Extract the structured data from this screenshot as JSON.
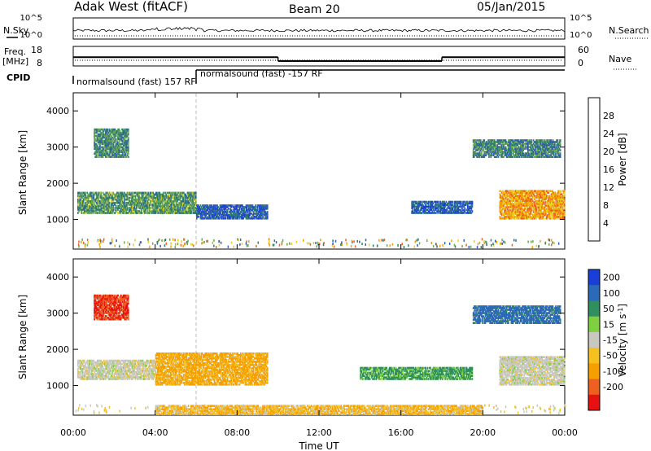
{
  "header": {
    "station": "Adak West (fitACF)",
    "beam": "Beam 20",
    "date": "05/Jan/2015"
  },
  "strip_labels": {
    "nsky": "N.Sky",
    "nsearch": "N.Search",
    "freq_line1": "Freq.",
    "freq_line2": "[MHz]",
    "nave": "Nave",
    "cpid": "CPID",
    "nsky_ticks": [
      "10^5",
      "10^0"
    ],
    "nsearch_ticks": [
      "10^5",
      "10^0"
    ],
    "freq_ticks": [
      "18",
      "8"
    ],
    "nave_ticks": [
      "60",
      "0"
    ]
  },
  "cpid_labels": [
    "normalsound (fast) 157 RF",
    "normalsound (fast) -157 RF"
  ],
  "colors": {
    "nsky_dots": "#000000",
    "cpid_line": "#000000",
    "dashed_marker": "#bbbbbb"
  },
  "chart_data": [
    {
      "type": "line",
      "name": "frequency-nave strip",
      "x_unit": "hours UT",
      "frequency_segments": [
        {
          "x0": 0,
          "x1": 10,
          "mhz": 12.5
        },
        {
          "x0": 10,
          "x1": 18,
          "mhz": 10.5
        },
        {
          "x0": 18,
          "x1": 24,
          "mhz": 12.5
        }
      ],
      "freq_ylim": [
        8,
        18
      ],
      "cpid_change_hour": 6
    },
    {
      "type": "heatmap",
      "name": "power panel",
      "ylabel": "Slant Range [km]",
      "ylim": [
        180,
        4500
      ],
      "yticks": [
        "1000",
        "2000",
        "3000",
        "4000"
      ],
      "colorbar_label": "Power [dB]",
      "colorbar_ticks": [
        "4",
        "8",
        "12",
        "16",
        "20",
        "24",
        "28"
      ],
      "colorbar_colors": [
        "#1a3fd8",
        "#2f5fb8",
        "#2f7f6e",
        "#6aa84f",
        "#e6d01c",
        "#f5a000",
        "#ee6020",
        "#e81010"
      ],
      "clim": [
        0,
        32
      ],
      "regions": [
        {
          "t0": 0.2,
          "t1": 6.0,
          "r0": 1150,
          "r1": 1750,
          "level": 12
        },
        {
          "t0": 6.0,
          "t1": 9.5,
          "r0": 1000,
          "r1": 1400,
          "level": 6
        },
        {
          "t0": 1.0,
          "t1": 2.7,
          "r0": 2700,
          "r1": 3500,
          "level": 11
        },
        {
          "t0": 16.5,
          "t1": 19.5,
          "r0": 1150,
          "r1": 1500,
          "level": 6
        },
        {
          "t0": 20.8,
          "t1": 24.0,
          "r0": 1000,
          "r1": 1800,
          "level": 22
        },
        {
          "t0": 19.5,
          "t1": 23.8,
          "r0": 2700,
          "r1": 3200,
          "level": 10
        }
      ]
    },
    {
      "type": "heatmap",
      "name": "velocity panel",
      "xlabel": "Time UT",
      "ylabel": "Slant Range [km]",
      "ylim": [
        180,
        4500
      ],
      "yticks": [
        "1000",
        "2000",
        "3000",
        "4000"
      ],
      "xticks": [
        "00:00",
        "04:00",
        "08:00",
        "12:00",
        "16:00",
        "20:00",
        "00:00"
      ],
      "colorbar_label": "Velocity [m s^-1]",
      "colorbar_ticks": [
        "200",
        "100",
        "50",
        "15",
        "-15",
        "-50",
        "-100",
        "-200"
      ],
      "colorbar_colors": [
        "#1a3fd8",
        "#2a6ab8",
        "#2f8f5f",
        "#7fd040",
        "#c8c8c0",
        "#f5c020",
        "#f5a000",
        "#ee6020",
        "#e81010"
      ],
      "regions": [
        {
          "t0": 0.2,
          "t1": 4.0,
          "r0": 1150,
          "r1": 1700,
          "level": 0
        },
        {
          "t0": 4.0,
          "t1": 9.5,
          "r0": 1000,
          "r1": 1900,
          "level": -40
        },
        {
          "t0": 1.0,
          "t1": 2.7,
          "r0": 2800,
          "r1": 3500,
          "level": -150
        },
        {
          "t0": 14.0,
          "t1": 19.5,
          "r0": 1150,
          "r1": 1500,
          "level": 40
        },
        {
          "t0": 20.8,
          "t1": 24.0,
          "r0": 1000,
          "r1": 1800,
          "level": 0
        },
        {
          "t0": 19.5,
          "t1": 23.8,
          "r0": 2700,
          "r1": 3200,
          "level": 90
        },
        {
          "t0": 4.0,
          "t1": 20.0,
          "r0": 180,
          "r1": 450,
          "level": -30
        }
      ]
    }
  ]
}
